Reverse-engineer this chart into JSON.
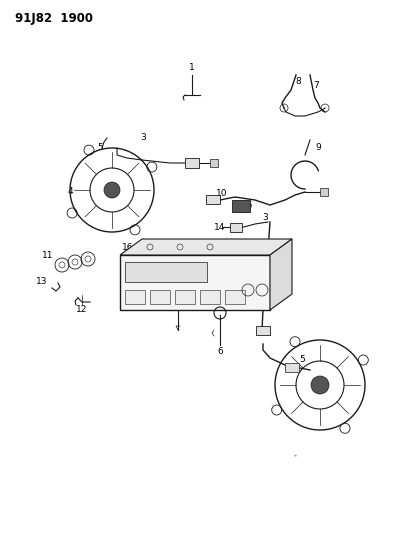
{
  "title": "91J82  1900",
  "bg_color": "#ffffff",
  "fig_width": 4.12,
  "fig_height": 5.33,
  "dpi": 100,
  "line_color": "#1a1a1a",
  "label_fontsize": 6.5,
  "title_fontsize": 8.5
}
